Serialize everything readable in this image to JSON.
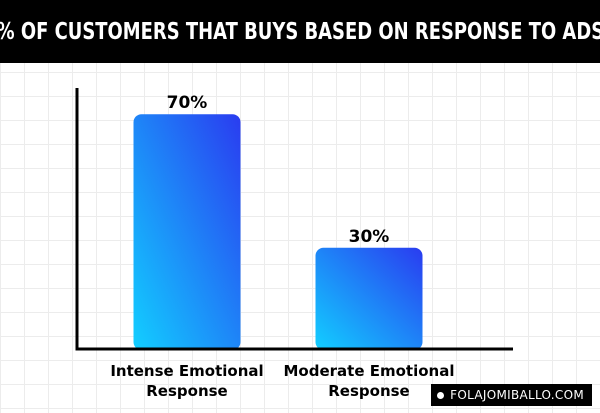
{
  "chart_data": {
    "type": "bar",
    "title": "% OF CUSTOMERS THAT BUYS BASED ON RESPONSE TO ADS",
    "categories": [
      [
        "Intense Emotional",
        "Response"
      ],
      [
        "Moderate Emotional",
        "Response"
      ]
    ],
    "values": [
      70,
      30
    ],
    "data_labels": [
      "70%",
      "30%"
    ],
    "ylim": [
      0,
      100
    ],
    "grid": true,
    "colors": {
      "bar_top": "#2a3cf0",
      "bar_bottom": "#12cfff",
      "axis": "#000000",
      "title_bg": "#000000"
    }
  },
  "watermark": {
    "text": "FOLAJOMIBALLO.COM"
  }
}
